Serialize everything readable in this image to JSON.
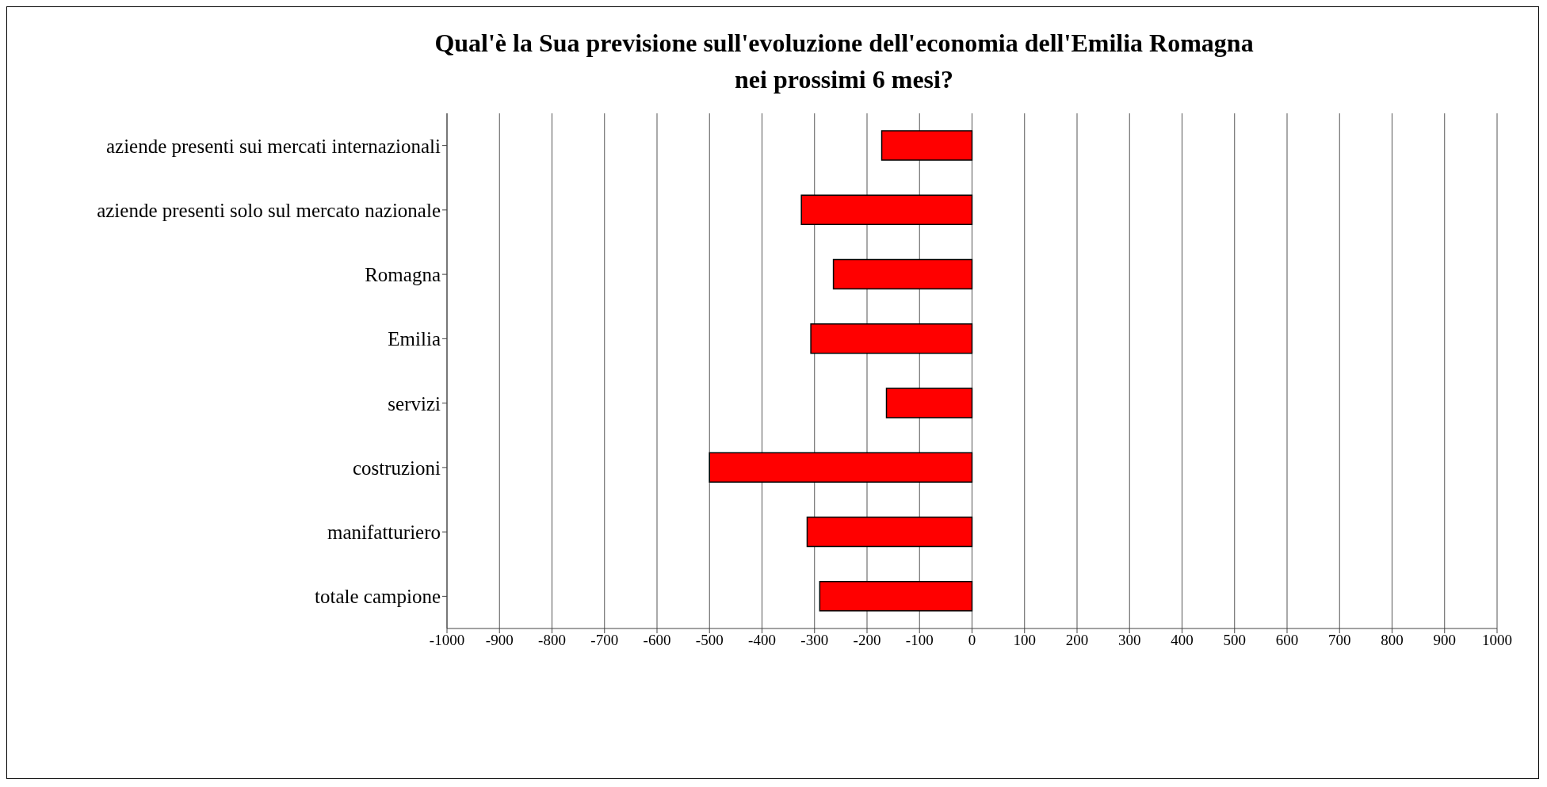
{
  "chart_data": {
    "type": "bar",
    "orientation": "horizontal",
    "title": "Qual'è la Sua previsione sull'evoluzione dell'economia dell'Emilia Romagna\nnei prossimi 6 mesi?",
    "categories": [
      "aziende presenti sui mercati internazionali",
      "aziende presenti solo sul mercato nazionale",
      "Romagna",
      "Emilia",
      "servizi",
      "costruzioni",
      "manifatturiero",
      "totale campione"
    ],
    "values": [
      -172,
      -325,
      -264,
      -307,
      -163,
      -500,
      -314,
      -290
    ],
    "color": "#ff0000",
    "xlim": [
      -1000,
      1000
    ],
    "xticks": [
      -1000,
      -900,
      -800,
      -700,
      -600,
      -500,
      -400,
      -300,
      -200,
      -100,
      0,
      100,
      200,
      300,
      400,
      500,
      600,
      700,
      800,
      900,
      1000
    ],
    "grid": "x"
  }
}
